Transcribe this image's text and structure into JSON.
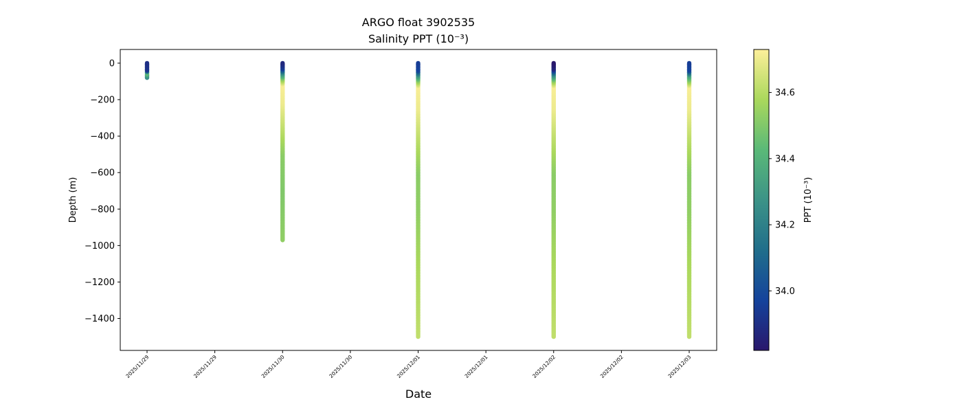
{
  "chart_data": {
    "type": "scatter",
    "title": "ARGO float 3902535",
    "subtitle": "Salinity PPT (10⁻³)",
    "xlabel": "Date",
    "ylabel": "Depth (m)",
    "x_tick_labels": [
      "2025/11/29",
      "2025/11/29",
      "2025/11/30",
      "2025/11/30",
      "2025/12/01",
      "2025/12/01",
      "2025/12/02",
      "2025/12/02",
      "2025/12/03"
    ],
    "y_ticks": [
      0,
      -200,
      -400,
      -600,
      -800,
      -1000,
      -1200,
      -1400
    ],
    "y_tick_labels": [
      "0",
      "−200",
      "−400",
      "−600",
      "−800",
      "−1000",
      "−1200",
      "−1400"
    ],
    "ylim": [
      -1575,
      75
    ],
    "colorbar": {
      "label": "PPT (10⁻³)",
      "range": [
        33.82,
        34.73
      ],
      "ticks": [
        34.0,
        34.2,
        34.4,
        34.6
      ],
      "tick_labels": [
        "34.0",
        "34.2",
        "34.4",
        "34.6"
      ],
      "colormap": "haline",
      "colors": [
        "#2a186c",
        "#14439c",
        "#206e8b",
        "#3c9387",
        "#5ab978",
        "#aad85c",
        "#fdef9a"
      ]
    },
    "profiles": [
      {
        "date": "2025/11/29",
        "max_depth": -80,
        "salinity": [
          [
            0,
            33.9
          ],
          [
            -40,
            33.92
          ],
          [
            -55,
            34.45
          ],
          [
            -70,
            34.3
          ],
          [
            -80,
            34.25
          ]
        ]
      },
      {
        "date": "2025/11/30",
        "max_depth": -970,
        "salinity": [
          [
            0,
            33.88
          ],
          [
            -30,
            33.95
          ],
          [
            -60,
            34.3
          ],
          [
            -90,
            34.55
          ],
          [
            -120,
            34.72
          ],
          [
            -220,
            34.7
          ],
          [
            -350,
            34.62
          ],
          [
            -500,
            34.52
          ],
          [
            -700,
            34.5
          ],
          [
            -970,
            34.53
          ]
        ]
      },
      {
        "date": "2025/12/01",
        "max_depth": -1500,
        "salinity": [
          [
            0,
            33.95
          ],
          [
            -40,
            33.98
          ],
          [
            -70,
            34.3
          ],
          [
            -100,
            34.55
          ],
          [
            -130,
            34.72
          ],
          [
            -250,
            34.7
          ],
          [
            -400,
            34.62
          ],
          [
            -600,
            34.52
          ],
          [
            -800,
            34.53
          ],
          [
            -1100,
            34.58
          ],
          [
            -1500,
            34.62
          ]
        ]
      },
      {
        "date": "2025/12/02",
        "max_depth": -1500,
        "salinity": [
          [
            0,
            33.82
          ],
          [
            -35,
            33.88
          ],
          [
            -65,
            34.25
          ],
          [
            -100,
            34.55
          ],
          [
            -130,
            34.72
          ],
          [
            -250,
            34.7
          ],
          [
            -400,
            34.62
          ],
          [
            -600,
            34.52
          ],
          [
            -800,
            34.53
          ],
          [
            -1100,
            34.58
          ],
          [
            -1500,
            34.62
          ]
        ]
      },
      {
        "date": "2025/12/03",
        "max_depth": -1500,
        "salinity": [
          [
            0,
            33.95
          ],
          [
            -40,
            33.98
          ],
          [
            -70,
            34.35
          ],
          [
            -100,
            34.55
          ],
          [
            -130,
            34.72
          ],
          [
            -250,
            34.7
          ],
          [
            -400,
            34.62
          ],
          [
            -600,
            34.52
          ],
          [
            -800,
            34.53
          ],
          [
            -1100,
            34.58
          ],
          [
            -1500,
            34.62
          ]
        ]
      }
    ]
  }
}
